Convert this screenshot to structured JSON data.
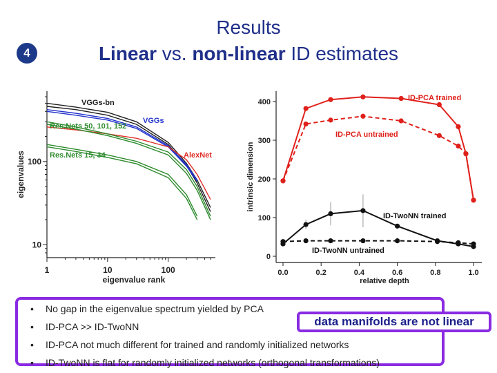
{
  "slide": {
    "number": "4",
    "title": "Results",
    "subtitle_parts": [
      "Linear",
      " vs. ",
      "non-linear",
      " ID estimates"
    ],
    "bullets": [
      "No gap in the eigenvalue spectrum yielded by PCA",
      "ID-PCA >> ID-TwoNN",
      "ID-PCA not much different for trained and randomly initialized networks",
      "ID-TwoNN is flat for randomly initialized networks (orthogonal transformations)"
    ],
    "callout": "data manifolds are not linear"
  },
  "chart_data": [
    {
      "type": "line",
      "xlabel": "eigenvalue rank",
      "ylabel": "eigenvalues",
      "x_scale": "log",
      "y_scale": "log",
      "xticks": [
        "1",
        "10",
        "100"
      ],
      "yticks": [
        "10",
        "100"
      ],
      "annotations": [
        {
          "text": "VGGs-bn",
          "color": "#222222"
        },
        {
          "text": "VGGs",
          "color": "#2233cc"
        },
        {
          "text": "Res.Nets 50, 101, 152",
          "color": "#2e8b2e"
        },
        {
          "text": "AlexNet",
          "color": "#e0302a"
        },
        {
          "text": "Res.Nets 15, 34",
          "color": "#2e8b2e"
        }
      ],
      "series": [
        {
          "group": "VGGs-bn",
          "color": "#222222",
          "x": [
            1,
            3,
            10,
            30,
            100,
            200,
            300,
            500
          ],
          "y": [
            500,
            450,
            390,
            300,
            170,
            95,
            60,
            28
          ]
        },
        {
          "group": "VGGs-bn",
          "color": "#222222",
          "x": [
            1,
            3,
            10,
            30,
            100,
            200,
            300,
            500
          ],
          "y": [
            460,
            420,
            360,
            280,
            160,
            90,
            55,
            25
          ]
        },
        {
          "group": "VGGs",
          "color": "#2233cc",
          "x": [
            1,
            3,
            10,
            30,
            100,
            200,
            300
          ],
          "y": [
            420,
            380,
            330,
            260,
            155,
            92,
            60
          ]
        },
        {
          "group": "VGGs",
          "color": "#2233cc",
          "x": [
            1,
            3,
            10,
            30,
            100,
            200,
            300
          ],
          "y": [
            400,
            360,
            315,
            250,
            150,
            88,
            58
          ]
        },
        {
          "group": "AlexNet",
          "color": "#e0302a",
          "x": [
            1,
            3,
            10,
            30,
            100,
            200,
            300,
            500
          ],
          "y": [
            260,
            240,
            215,
            190,
            150,
            105,
            70,
            35
          ]
        },
        {
          "group": "Res.Nets 50, 101, 152",
          "color": "#2e8b2e",
          "x": [
            1,
            3,
            10,
            30,
            100,
            200,
            300,
            500
          ],
          "y": [
            300,
            260,
            215,
            175,
            130,
            80,
            50,
            22
          ]
        },
        {
          "group": "Res.Nets 50, 101, 152",
          "color": "#2e8b2e",
          "x": [
            1,
            3,
            10,
            30,
            100,
            200,
            300,
            500
          ],
          "y": [
            280,
            245,
            205,
            165,
            120,
            72,
            45,
            20
          ]
        },
        {
          "group": "Res.Nets 15, 34",
          "color": "#2e8b2e",
          "x": [
            1,
            3,
            10,
            30,
            100,
            200,
            300
          ],
          "y": [
            160,
            140,
            120,
            100,
            70,
            40,
            22
          ]
        },
        {
          "group": "Res.Nets 15, 34",
          "color": "#2e8b2e",
          "x": [
            1,
            3,
            10,
            30,
            100,
            200,
            300
          ],
          "y": [
            150,
            132,
            112,
            94,
            64,
            36,
            20
          ]
        }
      ]
    },
    {
      "type": "line",
      "xlabel": "relative depth",
      "ylabel": "intrinsic dimension",
      "xlim": [
        0.0,
        1.0
      ],
      "ylim": [
        0,
        420
      ],
      "xticks": [
        0.0,
        0.2,
        0.4,
        0.6,
        0.8,
        1.0
      ],
      "xtick_labels": [
        "0.0",
        "0.2",
        "0.4",
        "0.6",
        "0.8",
        "1.0"
      ],
      "yticks": [
        0,
        100,
        200,
        300,
        400
      ],
      "series": [
        {
          "name": "ID-PCA trained",
          "color": "#e0201a",
          "style": "solid",
          "x": [
            0.0,
            0.12,
            0.25,
            0.42,
            0.62,
            0.82,
            0.92,
            0.96,
            1.0
          ],
          "y": [
            195,
            382,
            405,
            412,
            408,
            392,
            335,
            265,
            145
          ]
        },
        {
          "name": "ID-PCA untrained",
          "color": "#e0201a",
          "style": "dashed",
          "x": [
            0.0,
            0.12,
            0.25,
            0.42,
            0.62,
            0.82,
            0.92,
            0.96,
            1.0
          ],
          "y": [
            195,
            342,
            352,
            362,
            350,
            312,
            285,
            265,
            145
          ]
        },
        {
          "name": "ID-TwoNN trained",
          "color": "#111111",
          "style": "solid",
          "x": [
            0.0,
            0.12,
            0.25,
            0.42,
            0.6,
            0.81,
            0.92,
            1.0
          ],
          "y": [
            32,
            82,
            110,
            118,
            78,
            40,
            32,
            25
          ]
        },
        {
          "name": "ID-TwoNN untrained",
          "color": "#111111",
          "style": "dashed",
          "x": [
            0.0,
            0.12,
            0.25,
            0.42,
            0.6,
            0.81,
            0.92,
            1.0
          ],
          "y": [
            38,
            40,
            40,
            40,
            40,
            38,
            35,
            32
          ]
        }
      ],
      "error_bars": [
        {
          "x": 0.25,
          "low": 80,
          "high": 140
        },
        {
          "x": 0.42,
          "low": 75,
          "high": 160
        },
        {
          "x": 0.12,
          "low": 70,
          "high": 95
        }
      ]
    }
  ]
}
